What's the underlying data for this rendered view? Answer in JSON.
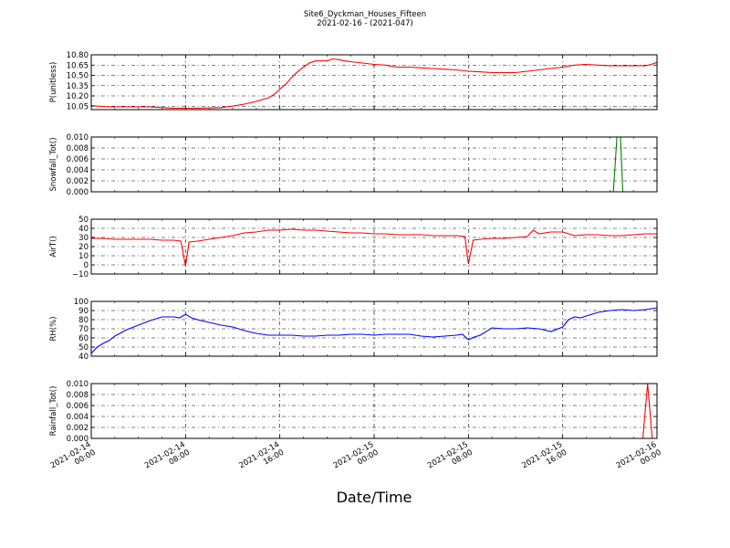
{
  "header": {
    "title": "Site6_Dyckman_Houses_Fifteen",
    "subtitle": "2021-02-16 - (2021-047)"
  },
  "chart_data": {
    "type": "line",
    "xlabel": "Date/Time",
    "x_range_hours": [
      0,
      48
    ],
    "x_ticks": [
      {
        "h": 0,
        "line1": "2021-02-14",
        "line2": "00:00"
      },
      {
        "h": 8,
        "line1": "2021-02-14",
        "line2": "08:00"
      },
      {
        "h": 16,
        "line1": "2021-02-14",
        "line2": "16:00"
      },
      {
        "h": 24,
        "line1": "2021-02-15",
        "line2": "00:00"
      },
      {
        "h": 32,
        "line1": "2021-02-15",
        "line2": "08:00"
      },
      {
        "h": 40,
        "line1": "2021-02-15",
        "line2": "16:00"
      },
      {
        "h": 48,
        "line1": "2021-02-16",
        "line2": "00:00"
      }
    ],
    "grid": true,
    "panels": [
      {
        "name": "pressure",
        "ylabel": "P(unitless)",
        "color": "#ff0000",
        "ylim": [
          10.0,
          10.8
        ],
        "yticks": [
          "10.05",
          "10.20",
          "10.35",
          "10.50",
          "10.65",
          "10.80"
        ],
        "ytick_values": [
          10.05,
          10.2,
          10.35,
          10.5,
          10.65,
          10.8
        ],
        "points": [
          [
            0,
            10.06
          ],
          [
            0.5,
            10.05
          ],
          [
            1.5,
            10.04
          ],
          [
            3,
            10.04
          ],
          [
            5,
            10.04
          ],
          [
            6,
            10.03
          ],
          [
            7,
            10.02
          ],
          [
            9,
            10.02
          ],
          [
            11,
            10.03
          ],
          [
            12,
            10.05
          ],
          [
            13,
            10.08
          ],
          [
            14,
            10.12
          ],
          [
            15,
            10.17
          ],
          [
            15.5,
            10.22
          ],
          [
            16,
            10.3
          ],
          [
            16.5,
            10.37
          ],
          [
            17,
            10.47
          ],
          [
            17.5,
            10.55
          ],
          [
            18,
            10.62
          ],
          [
            18.5,
            10.68
          ],
          [
            19,
            10.71
          ],
          [
            20,
            10.71
          ],
          [
            20.5,
            10.74
          ],
          [
            21,
            10.73
          ],
          [
            21.5,
            10.71
          ],
          [
            22,
            10.7
          ],
          [
            23,
            10.68
          ],
          [
            24,
            10.66
          ],
          [
            25,
            10.65
          ],
          [
            25.5,
            10.63
          ],
          [
            26,
            10.62
          ],
          [
            27,
            10.62
          ],
          [
            28,
            10.61
          ],
          [
            29,
            10.6
          ],
          [
            30,
            10.59
          ],
          [
            31,
            10.58
          ],
          [
            32,
            10.56
          ],
          [
            33,
            10.55
          ],
          [
            34,
            10.54
          ],
          [
            35,
            10.54
          ],
          [
            36,
            10.54
          ],
          [
            37,
            10.56
          ],
          [
            38,
            10.58
          ],
          [
            39,
            10.6
          ],
          [
            40,
            10.62
          ],
          [
            41,
            10.65
          ],
          [
            42,
            10.66
          ],
          [
            43,
            10.65
          ],
          [
            44,
            10.64
          ],
          [
            45,
            10.64
          ],
          [
            46,
            10.64
          ],
          [
            47,
            10.64
          ],
          [
            47.5,
            10.66
          ],
          [
            48,
            10.69
          ]
        ]
      },
      {
        "name": "snowfall",
        "ylabel": "Snowfall_Tot()",
        "color": "#008000",
        "ylim": [
          0,
          0.01
        ],
        "yticks": [
          "0.000",
          "0.002",
          "0.004",
          "0.006",
          "0.008",
          "0.010"
        ],
        "ytick_values": [
          0,
          0.002,
          0.004,
          0.006,
          0.008,
          0.01
        ],
        "points": [
          [
            0,
            0
          ],
          [
            44.3,
            0
          ],
          [
            44.6,
            0.01
          ],
          [
            44.9,
            0.01
          ],
          [
            45.1,
            0
          ],
          [
            48,
            0
          ]
        ]
      },
      {
        "name": "airtemp",
        "ylabel": "AirT()",
        "color": "#ff0000",
        "ylim": [
          -10,
          50
        ],
        "yticks": [
          "−10",
          "0",
          "10",
          "20",
          "30",
          "40",
          "50"
        ],
        "ytick_values": [
          -10,
          0,
          10,
          20,
          30,
          40,
          50
        ],
        "points": [
          [
            0,
            29
          ],
          [
            1,
            29
          ],
          [
            2,
            28
          ],
          [
            3,
            28
          ],
          [
            4,
            28
          ],
          [
            5,
            28
          ],
          [
            6,
            27
          ],
          [
            7,
            27
          ],
          [
            7.6,
            26
          ],
          [
            8,
            -1
          ],
          [
            8.3,
            25
          ],
          [
            9,
            26
          ],
          [
            10,
            28
          ],
          [
            11,
            30
          ],
          [
            12,
            32
          ],
          [
            13,
            35
          ],
          [
            14,
            36
          ],
          [
            15,
            38
          ],
          [
            16,
            38
          ],
          [
            17,
            39
          ],
          [
            18,
            38
          ],
          [
            19,
            38
          ],
          [
            20,
            37
          ],
          [
            21,
            36
          ],
          [
            22,
            35
          ],
          [
            23,
            35
          ],
          [
            24,
            34
          ],
          [
            25,
            34
          ],
          [
            26,
            33
          ],
          [
            27,
            33
          ],
          [
            28,
            33
          ],
          [
            29,
            32
          ],
          [
            30,
            32
          ],
          [
            31,
            32
          ],
          [
            31.7,
            31
          ],
          [
            32,
            1
          ],
          [
            32.4,
            27
          ],
          [
            33,
            28
          ],
          [
            34,
            29
          ],
          [
            35,
            29
          ],
          [
            36,
            30
          ],
          [
            37,
            31
          ],
          [
            37.5,
            38
          ],
          [
            38,
            34
          ],
          [
            39,
            36
          ],
          [
            40,
            36
          ],
          [
            41,
            32
          ],
          [
            42,
            33
          ],
          [
            43,
            33
          ],
          [
            44,
            32
          ],
          [
            45,
            32
          ],
          [
            46,
            33
          ],
          [
            47,
            34
          ],
          [
            48,
            34
          ]
        ]
      },
      {
        "name": "rh",
        "ylabel": "RH(%)",
        "color": "#0000ff",
        "ylim": [
          40,
          100
        ],
        "yticks": [
          "40",
          "50",
          "60",
          "70",
          "80",
          "90",
          "100"
        ],
        "ytick_values": [
          40,
          50,
          60,
          70,
          80,
          90,
          100
        ],
        "points": [
          [
            0,
            43
          ],
          [
            0.5,
            50
          ],
          [
            1,
            54
          ],
          [
            1.5,
            57
          ],
          [
            2,
            62
          ],
          [
            3,
            69
          ],
          [
            4,
            74
          ],
          [
            5,
            79
          ],
          [
            6,
            83
          ],
          [
            7,
            83
          ],
          [
            7.5,
            82
          ],
          [
            8,
            86
          ],
          [
            8.5,
            82
          ],
          [
            9,
            80
          ],
          [
            10,
            77
          ],
          [
            11,
            74
          ],
          [
            12,
            72
          ],
          [
            13,
            68
          ],
          [
            14,
            65
          ],
          [
            15,
            63
          ],
          [
            16,
            63
          ],
          [
            17,
            63
          ],
          [
            18,
            62
          ],
          [
            19,
            62
          ],
          [
            20,
            63
          ],
          [
            21,
            63
          ],
          [
            22,
            64
          ],
          [
            23,
            64
          ],
          [
            24,
            63
          ],
          [
            25,
            64
          ],
          [
            26,
            64
          ],
          [
            27,
            64
          ],
          [
            28,
            62
          ],
          [
            29,
            61
          ],
          [
            30,
            62
          ],
          [
            31,
            63
          ],
          [
            31.5,
            64
          ],
          [
            32,
            58
          ],
          [
            32.5,
            61
          ],
          [
            33,
            63
          ],
          [
            34,
            71
          ],
          [
            35,
            70
          ],
          [
            36,
            70
          ],
          [
            37,
            71
          ],
          [
            38,
            70
          ],
          [
            39,
            67
          ],
          [
            40,
            72
          ],
          [
            40.5,
            80
          ],
          [
            41,
            83
          ],
          [
            41.5,
            82
          ],
          [
            42,
            84
          ],
          [
            43,
            88
          ],
          [
            44,
            90
          ],
          [
            45,
            91
          ],
          [
            46,
            90
          ],
          [
            47,
            91
          ],
          [
            48,
            93
          ]
        ]
      },
      {
        "name": "rainfall",
        "ylabel": "Rainfall_Tot()",
        "color": "#ff0000",
        "ylim": [
          0,
          0.01
        ],
        "yticks": [
          "0.000",
          "0.002",
          "0.004",
          "0.006",
          "0.008",
          "0.010"
        ],
        "ytick_values": [
          0,
          0.002,
          0.004,
          0.006,
          0.008,
          0.01
        ],
        "points": [
          [
            0,
            0
          ],
          [
            46.8,
            0
          ],
          [
            47.2,
            0.01
          ],
          [
            47.6,
            0
          ],
          [
            48,
            0
          ]
        ]
      }
    ]
  }
}
